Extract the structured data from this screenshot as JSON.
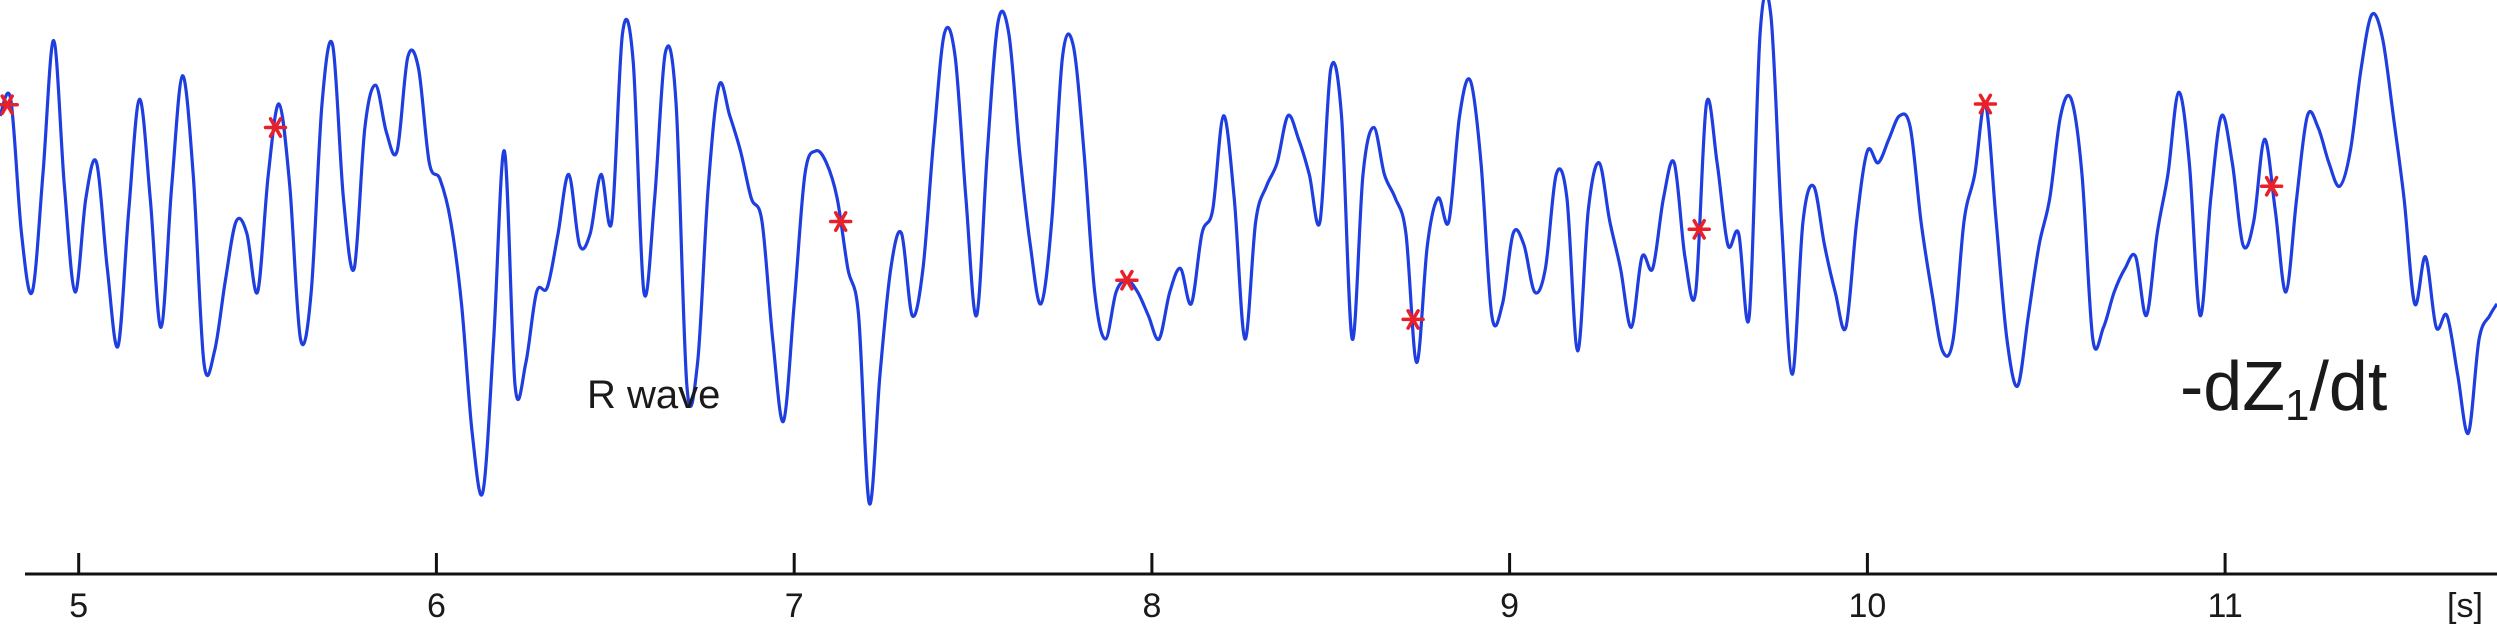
{
  "chart_data": {
    "type": "line",
    "title": "",
    "xlabel": "",
    "ylabel": "",
    "x_unit": "[s]",
    "x_ticks": [
      "5",
      "6",
      "7",
      "8",
      "9",
      "10",
      "11"
    ],
    "xlim": [
      4.78,
      11.76
    ],
    "ylim": [
      -1.0,
      1.0
    ],
    "grid": false,
    "legend": "none",
    "signal_label": {
      "main": "-dZ",
      "subscript": "1",
      "suffix": "/dt"
    },
    "annotation": "R wave",
    "line_color": "#1f3ee0",
    "marker_color": "#e8202a",
    "series": [
      {
        "x": [
          4.78,
          4.81,
          4.84,
          4.87,
          4.9,
          4.93,
          4.96,
          4.99,
          5.02,
          5.05,
          5.08,
          5.11,
          5.14,
          5.17,
          5.2,
          5.23,
          5.26,
          5.29,
          5.32,
          5.35,
          5.38,
          5.41,
          5.44,
          5.47,
          5.5,
          5.53,
          5.56,
          5.59,
          5.62,
          5.65,
          5.68,
          5.71,
          5.74,
          5.77,
          5.8,
          5.83,
          5.86,
          5.89,
          5.92,
          5.95,
          5.98,
          6.01,
          6.04,
          6.07,
          6.1,
          6.13,
          6.16,
          6.19,
          6.22,
          6.25,
          6.28,
          6.31,
          6.34,
          6.37,
          6.4,
          6.43,
          6.46,
          6.49,
          6.52,
          6.55,
          6.58,
          6.61,
          6.64,
          6.67,
          6.7,
          6.73,
          6.76,
          6.79,
          6.82,
          6.85,
          6.88,
          6.91,
          6.94,
          6.97,
          7.0,
          7.03,
          7.06,
          7.09,
          7.12,
          7.15,
          7.18,
          7.21,
          7.24,
          7.27,
          7.3,
          7.33,
          7.36,
          7.39,
          7.42,
          7.45,
          7.48,
          7.51,
          7.54,
          7.57,
          7.6,
          7.63,
          7.66,
          7.69,
          7.72,
          7.75,
          7.78,
          7.81,
          7.84,
          7.87,
          7.9,
          7.93,
          7.96,
          7.99,
          8.02,
          8.05,
          8.08,
          8.11,
          8.14,
          8.17,
          8.2,
          8.23,
          8.26,
          8.29,
          8.32,
          8.35,
          8.38,
          8.41,
          8.44,
          8.47,
          8.5,
          8.53,
          8.56,
          8.59,
          8.62,
          8.65,
          8.68,
          8.71,
          8.74,
          8.77,
          8.8,
          8.83,
          8.86,
          8.89,
          8.92,
          8.95,
          8.98,
          9.01,
          9.04,
          9.07,
          9.1,
          9.13,
          9.16,
          9.19,
          9.22,
          9.25,
          9.28,
          9.31,
          9.34,
          9.37,
          9.4,
          9.43,
          9.46,
          9.49,
          9.52,
          9.55,
          9.58,
          9.61,
          9.64,
          9.67,
          9.7,
          9.73,
          9.76,
          9.79,
          9.82,
          9.85,
          9.88,
          9.91,
          9.94,
          9.97,
          10.0,
          10.03,
          10.06,
          10.09,
          10.12,
          10.15,
          10.18,
          10.21,
          10.24,
          10.27,
          10.3,
          10.33,
          10.36,
          10.39,
          10.42,
          10.45,
          10.48,
          10.51,
          10.54,
          10.57,
          10.6,
          10.63,
          10.66,
          10.69,
          10.72,
          10.75,
          10.78,
          10.81,
          10.84,
          10.87,
          10.9,
          10.93,
          10.96,
          10.99,
          11.02,
          11.05,
          11.08,
          11.11,
          11.14,
          11.17,
          11.2,
          11.23,
          11.26,
          11.29,
          11.32,
          11.35,
          11.38,
          11.41,
          11.44,
          11.47,
          11.5,
          11.53,
          11.56,
          11.59,
          11.62,
          11.65,
          11.68,
          11.71,
          11.74,
          11.76
        ],
        "y": [
          0.55,
          0.62,
          0.05,
          -0.2,
          0.3,
          0.87,
          0.25,
          -0.2,
          0.2,
          0.35,
          -0.1,
          -0.43,
          0.15,
          0.62,
          0.2,
          -0.35,
          0.25,
          0.72,
          0.3,
          -0.5,
          -0.45,
          -0.15,
          0.1,
          0.05,
          -0.2,
          0.3,
          0.6,
          0.25,
          -0.4,
          -0.2,
          0.6,
          0.85,
          0.2,
          -0.1,
          0.5,
          0.68,
          0.48,
          0.4,
          0.8,
          0.75,
          0.35,
          0.28,
          0.1,
          -0.25,
          -0.8,
          -1.05,
          -0.4,
          0.4,
          -0.6,
          -0.5,
          -0.2,
          -0.18,
          0.05,
          0.3,
          0.0,
          0.05,
          0.3,
          0.1,
          0.9,
          0.78,
          -0.2,
          0.2,
          0.82,
          0.6,
          -0.6,
          -0.5,
          0.25,
          0.68,
          0.55,
          0.4,
          0.2,
          0.1,
          -0.4,
          -0.75,
          -0.25,
          0.3,
          0.4,
          0.35,
          0.2,
          -0.1,
          -0.3,
          -1.1,
          -0.55,
          -0.1,
          0.05,
          -0.3,
          -0.1,
          0.45,
          0.9,
          0.8,
          0.2,
          -0.3,
          0.4,
          0.95,
          0.9,
          0.4,
          0.0,
          -0.25,
          0.1,
          0.8,
          0.85,
          0.4,
          -0.2,
          -0.4,
          -0.2,
          -0.15,
          -0.2,
          -0.3,
          -0.4,
          -0.2,
          -0.1,
          -0.25,
          0.05,
          0.15,
          0.55,
          0.2,
          -0.4,
          0.1,
          0.25,
          0.35,
          0.55,
          0.45,
          0.3,
          0.1,
          0.75,
          0.55,
          -0.4,
          0.3,
          0.5,
          0.3,
          0.2,
          0.05,
          -0.5,
          0.0,
          0.2,
          0.1,
          0.55,
          0.7,
          0.35,
          -0.3,
          -0.25,
          0.05,
          0.0,
          -0.2,
          -0.1,
          0.3,
          0.2,
          -0.45,
          0.15,
          0.35,
          0.1,
          -0.1,
          -0.35,
          -0.05,
          -0.1,
          0.2,
          0.35,
          -0.05,
          -0.2,
          0.6,
          0.35,
          0.0,
          0.05,
          -0.3,
          0.9,
          0.98,
          0.1,
          -0.55,
          0.1,
          0.25,
          0.0,
          -0.2,
          -0.35,
          0.1,
          0.4,
          0.35,
          0.45,
          0.55,
          0.5,
          0.1,
          -0.2,
          -0.45,
          -0.4,
          0.1,
          0.3,
          0.6,
          0.1,
          -0.4,
          -0.6,
          -0.3,
          0.0,
          0.2,
          0.55,
          0.62,
          0.3,
          -0.4,
          -0.35,
          -0.2,
          -0.1,
          -0.05,
          -0.3,
          0.05,
          0.3,
          0.65,
          0.35,
          -0.3,
          0.2,
          0.55,
          0.35,
          0.0,
          0.1,
          0.45,
          0.15,
          -0.2,
          0.2,
          0.55,
          0.5,
          0.35,
          0.25,
          0.4,
          0.75,
          0.98,
          0.88,
          0.55,
          0.2,
          -0.25,
          -0.05,
          -0.35,
          -0.3,
          -0.55,
          -0.8,
          -0.4,
          -0.3,
          -0.25
        ],
        "markers_x": [
          4.8,
          5.55,
          7.13,
          7.93,
          8.73,
          9.53,
          10.33,
          11.13
        ]
      }
    ]
  }
}
